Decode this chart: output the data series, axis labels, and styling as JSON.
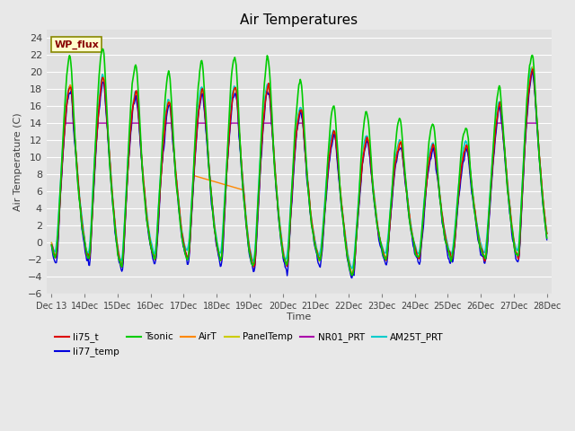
{
  "title": "Air Temperatures",
  "xlabel": "Time",
  "ylabel": "Air Temperature (C)",
  "ylim": [
    -6,
    25
  ],
  "yticks": [
    -6,
    -4,
    -2,
    0,
    2,
    4,
    6,
    8,
    10,
    12,
    14,
    16,
    18,
    20,
    22,
    24
  ],
  "start_day": 13,
  "end_day": 28,
  "n_points": 720,
  "series": {
    "li75_t": {
      "color": "#dd0000",
      "lw": 1.0,
      "zorder": 5
    },
    "li77_temp": {
      "color": "#0000dd",
      "lw": 1.0,
      "zorder": 5
    },
    "Tsonic": {
      "color": "#00cc00",
      "lw": 1.2,
      "zorder": 6
    },
    "AirT": {
      "color": "#ff8800",
      "lw": 1.0,
      "zorder": 5
    },
    "PanelTemp": {
      "color": "#cccc00",
      "lw": 1.0,
      "zorder": 5
    },
    "NR01_PRT": {
      "color": "#aa00aa",
      "lw": 1.0,
      "zorder": 5
    },
    "AM25T_PRT": {
      "color": "#00cccc",
      "lw": 1.2,
      "zorder": 4
    }
  },
  "annotation_text": "WP_flux",
  "annotation_color": "#880000",
  "annotation_bg": "#ffffcc",
  "annotation_border": "#888800",
  "bg_color": "#e8e8e8",
  "plot_bg_color": "#e0e0e0",
  "grid_color": "#ffffff",
  "tick_label_color": "#404040",
  "title_color": "#000000",
  "legend_items": [
    "li75_t",
    "li77_temp",
    "Tsonic",
    "AirT",
    "PanelTemp",
    "NR01_PRT",
    "AM25T_PRT"
  ],
  "figsize": [
    6.4,
    4.8
  ],
  "dpi": 100
}
